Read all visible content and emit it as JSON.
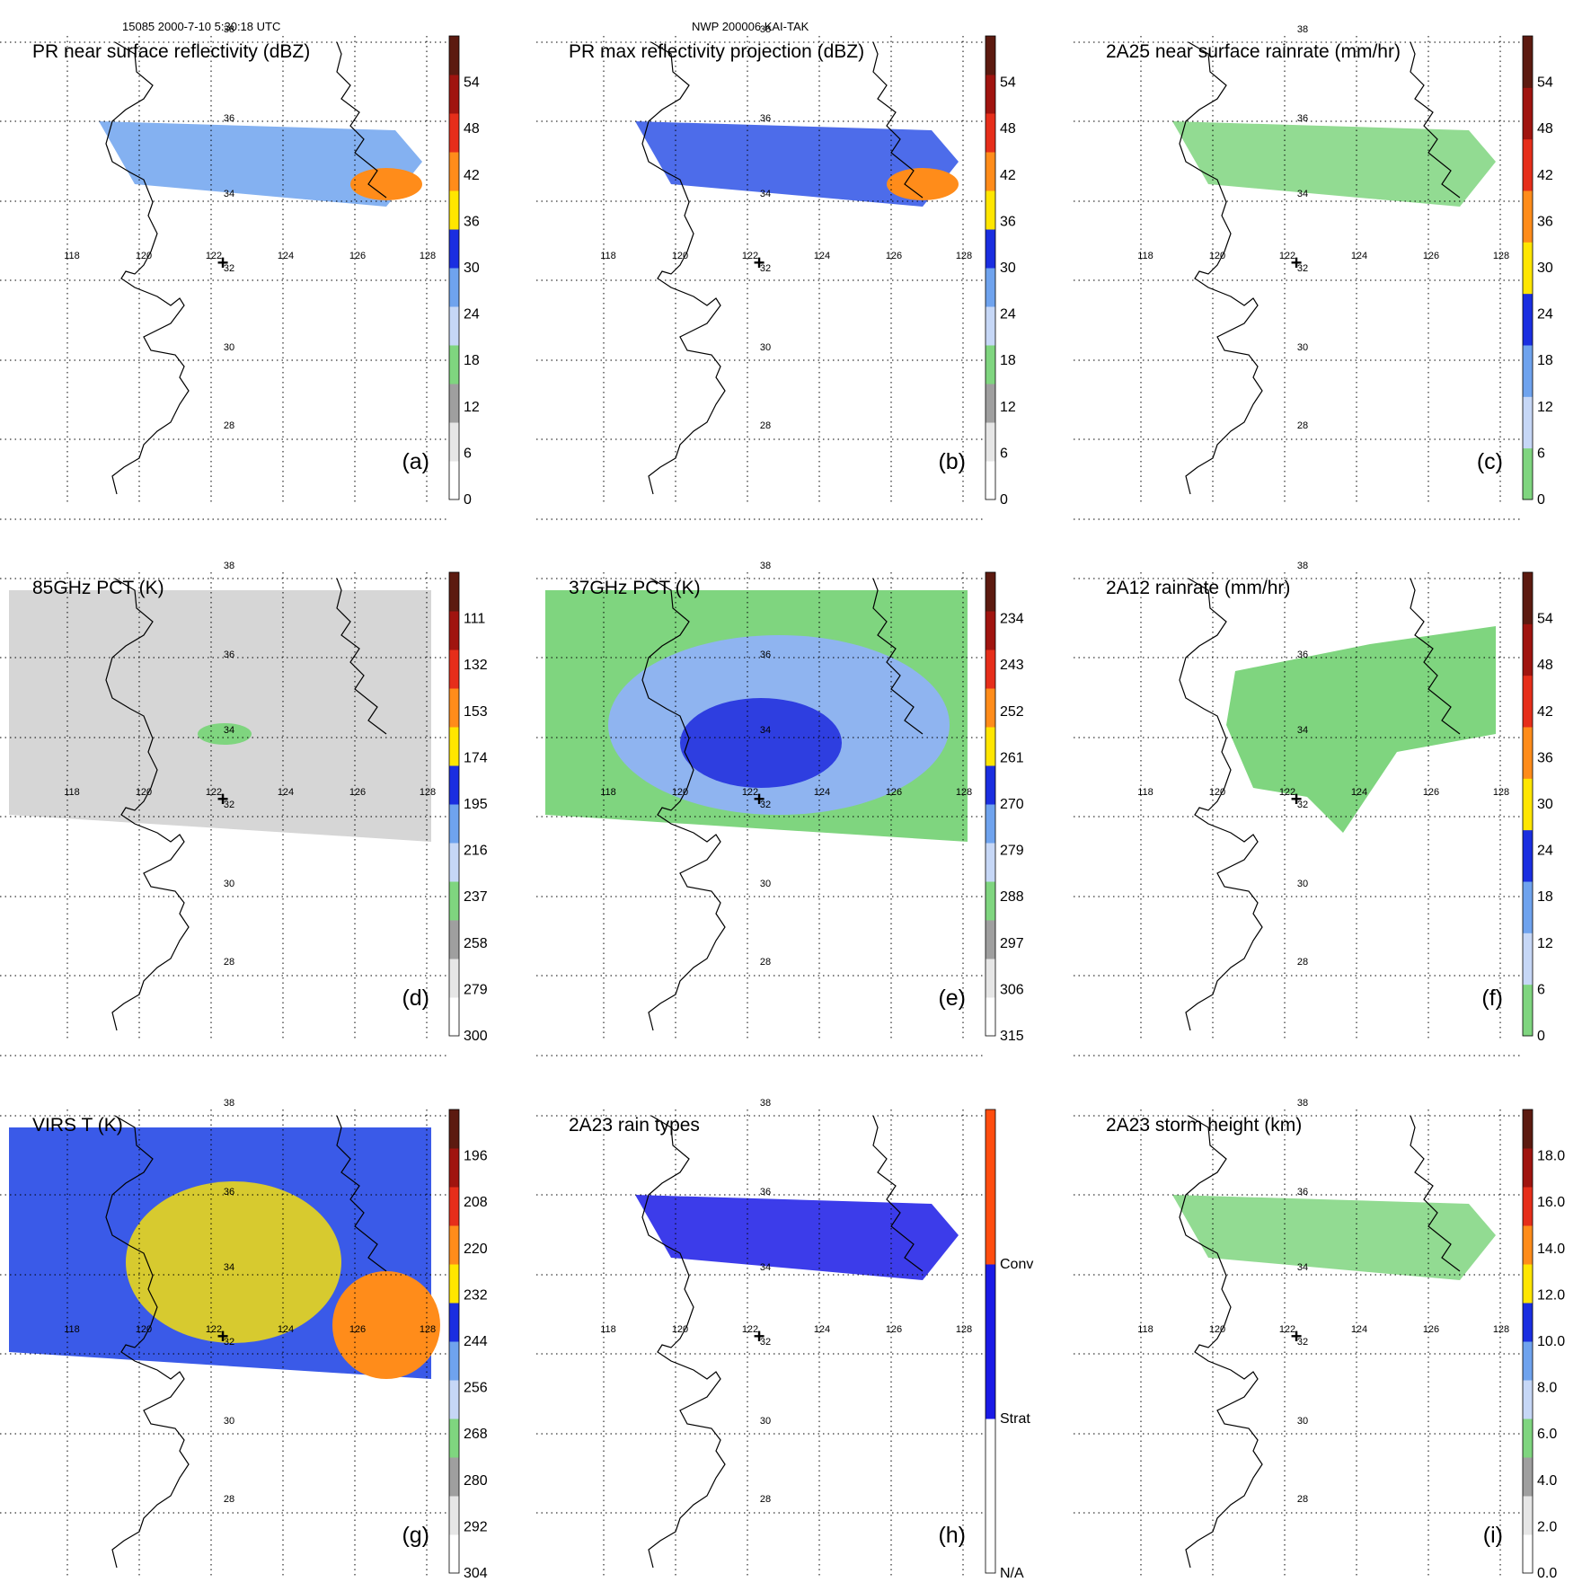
{
  "header": {
    "orbit_time": "15085 2000-7-10 5:30:18 UTC",
    "case_id": "NWP 200006 KAI-TAK"
  },
  "map": {
    "lon_labels": [
      "118",
      "120",
      "122",
      "124",
      "126",
      "128"
    ],
    "lat_labels": [
      "38",
      "36",
      "34",
      "32",
      "30",
      "28"
    ],
    "marker": "+"
  },
  "panels": [
    {
      "id": "a",
      "tag": "(a)",
      "title": "PR near surface reflectivity (dBZ)",
      "colorbar": {
        "labels": [
          "0",
          "6",
          "12",
          "18",
          "24",
          "30",
          "36",
          "42",
          "48",
          "54"
        ],
        "colors": [
          "#ffffff",
          "#e6e6e6",
          "#9f9f9f",
          "#7fd57f",
          "#c6d7f6",
          "#6fa3ee",
          "#1a2ee0",
          "#ffe600",
          "#ff8c1a",
          "#e62e1a",
          "#a0140f",
          "#5c1a10"
        ]
      }
    },
    {
      "id": "b",
      "tag": "(b)",
      "title": "PR max reflectivity projection (dBZ)",
      "colorbar": {
        "labels": [
          "0",
          "6",
          "12",
          "18",
          "24",
          "30",
          "36",
          "42",
          "48",
          "54"
        ],
        "colors": [
          "#ffffff",
          "#e6e6e6",
          "#9f9f9f",
          "#7fd57f",
          "#c6d7f6",
          "#6fa3ee",
          "#1a2ee0",
          "#ffe600",
          "#ff8c1a",
          "#e62e1a",
          "#a0140f",
          "#5c1a10"
        ]
      }
    },
    {
      "id": "c",
      "tag": "(c)",
      "title": "2A25 near surface rainrate (mm/hr)",
      "colorbar": {
        "labels": [
          "0",
          "6",
          "12",
          "18",
          "24",
          "30",
          "36",
          "42",
          "48",
          "54"
        ],
        "colors": [
          "#7fd57f",
          "#c6d7f6",
          "#6fa3ee",
          "#1a2ee0",
          "#ffe600",
          "#ff8c1a",
          "#e62e1a",
          "#a0140f",
          "#5c1a10"
        ]
      }
    },
    {
      "id": "d",
      "tag": "(d)",
      "title": "85GHz PCT (K)",
      "colorbar": {
        "labels": [
          "300",
          "279",
          "258",
          "237",
          "216",
          "195",
          "174",
          "153",
          "132",
          "111"
        ],
        "colors": [
          "#ffffff",
          "#e6e6e6",
          "#9f9f9f",
          "#7fd57f",
          "#c6d7f6",
          "#6fa3ee",
          "#1a2ee0",
          "#ffe600",
          "#ff8c1a",
          "#e62e1a",
          "#a0140f",
          "#5c1a10"
        ]
      }
    },
    {
      "id": "e",
      "tag": "(e)",
      "title": "37GHz PCT (K)",
      "colorbar": {
        "labels": [
          "315",
          "306",
          "297",
          "288",
          "279",
          "270",
          "261",
          "252",
          "243",
          "234"
        ],
        "colors": [
          "#ffffff",
          "#e6e6e6",
          "#9f9f9f",
          "#7fd57f",
          "#c6d7f6",
          "#6fa3ee",
          "#1a2ee0",
          "#ffe600",
          "#ff8c1a",
          "#e62e1a",
          "#a0140f",
          "#5c1a10"
        ]
      }
    },
    {
      "id": "f",
      "tag": "(f)",
      "title": "2A12 rainrate (mm/hr)",
      "colorbar": {
        "labels": [
          "0",
          "6",
          "12",
          "18",
          "24",
          "30",
          "36",
          "42",
          "48",
          "54"
        ],
        "colors": [
          "#7fd57f",
          "#c6d7f6",
          "#6fa3ee",
          "#1a2ee0",
          "#ffe600",
          "#ff8c1a",
          "#e62e1a",
          "#a0140f",
          "#5c1a10"
        ]
      }
    },
    {
      "id": "g",
      "tag": "(g)",
      "title": "VIRS T (K)",
      "colorbar": {
        "labels": [
          "304",
          "292",
          "280",
          "268",
          "256",
          "244",
          "232",
          "220",
          "208",
          "196"
        ],
        "colors": [
          "#ffffff",
          "#e6e6e6",
          "#9f9f9f",
          "#7fd57f",
          "#c6d7f6",
          "#6fa3ee",
          "#1a2ee0",
          "#ffe600",
          "#ff8c1a",
          "#e62e1a",
          "#a0140f",
          "#5c1a10"
        ]
      }
    },
    {
      "id": "h",
      "tag": "(h)",
      "title": "2A23 rain types",
      "colorbar": {
        "labels": [
          "N/A",
          "Strat",
          "Conv"
        ],
        "colors": [
          "#ffffff",
          "#1a1ae6",
          "#ff4d0f"
        ]
      }
    },
    {
      "id": "i",
      "tag": "(i)",
      "title": "2A23 storm height (km)",
      "colorbar": {
        "labels": [
          "0.0",
          "2.0",
          "4.0",
          "6.0",
          "8.0",
          "10.0",
          "12.0",
          "14.0",
          "16.0",
          "18.0"
        ],
        "colors": [
          "#ffffff",
          "#e6e6e6",
          "#9f9f9f",
          "#7fd57f",
          "#c6d7f6",
          "#6fa3ee",
          "#1a2ee0",
          "#ffe600",
          "#ff8c1a",
          "#e62e1a",
          "#a0140f",
          "#5c1a10"
        ]
      }
    }
  ]
}
